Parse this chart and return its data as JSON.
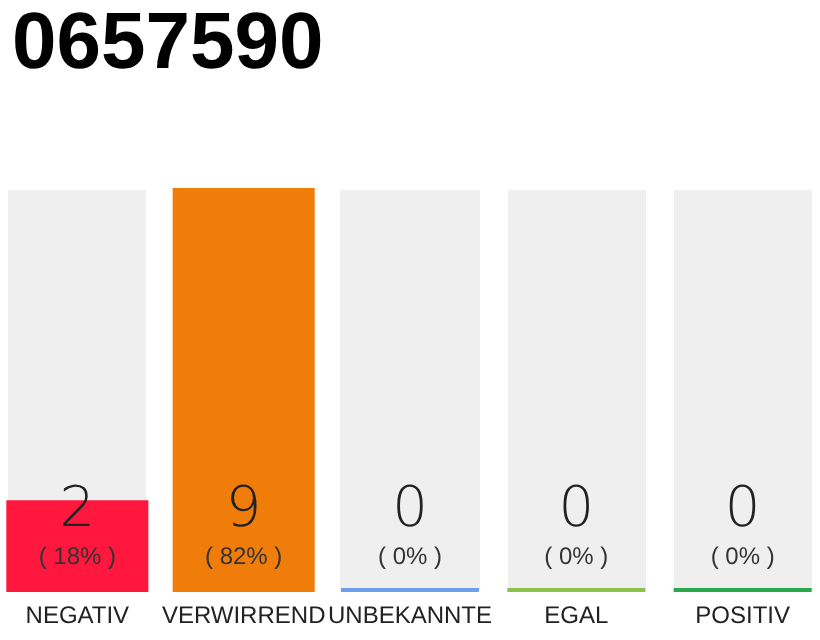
{
  "chart_data": {
    "type": "bar",
    "title": "0657590",
    "categories": [
      "NEGATIV",
      "VERWIRREND",
      "UNBEKANNTE",
      "EGAL",
      "POSITIV"
    ],
    "values": [
      18,
      82,
      0,
      0,
      0
    ],
    "colors": [
      "#ff173d",
      "#f07d0a",
      "#6d9eeb",
      "#8bc34a",
      "#2aa84a"
    ],
    "value_labels": [
      "( 18% )",
      "( 82% )",
      "( 0% )",
      "( 0% )",
      "( 0% )"
    ],
    "annotations": [
      "2",
      "9",
      "0",
      "0",
      "0"
    ]
  }
}
